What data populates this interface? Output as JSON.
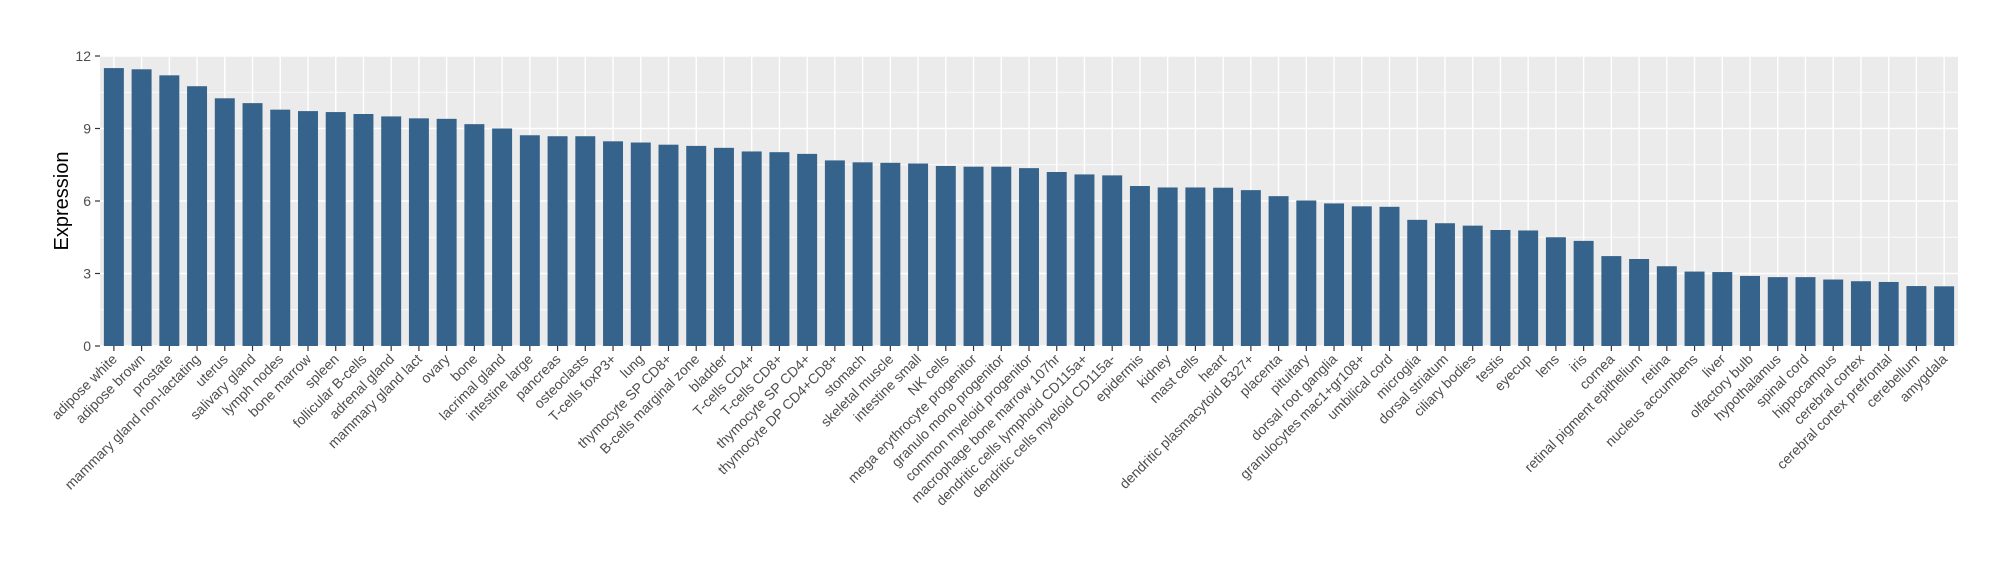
{
  "chart_data": {
    "type": "bar",
    "title": "",
    "xlabel": "",
    "ylabel": "Expression",
    "ylim": [
      0,
      12
    ],
    "yticks": [
      0,
      3,
      6,
      9,
      12
    ],
    "grid": true,
    "legend": "none",
    "bar_color": "#35638B",
    "panel_background": "#EBEBEB",
    "gridline_color": "#FFFFFF",
    "categories": [
      "adipose white",
      "adipose brown",
      "prostate",
      "mammary gland non-lactating",
      "uterus",
      "salivary gland",
      "lymph nodes",
      "bone marrow",
      "spleen",
      "follicular B-cells",
      "adrenal gland",
      "mammary gland  lact",
      "ovary",
      "bone",
      "lacrimal gland",
      "intestine large",
      "pancreas",
      "osteoclasts",
      "T-cells foxP3+",
      "lung",
      "thymocyte SP CD8+",
      "B-cells marginal zone",
      "bladder",
      "T-cells CD4+",
      "T-cells CD8+",
      "thymocyte SP CD4+",
      "thymocyte DP CD4+CD8+",
      "stomach",
      "skeletal muscle",
      "intestine small",
      "NK cells",
      "mega erythrocyte progenitor",
      "granulo mono progenitor",
      "common myeloid progenitor",
      "macrophage bone marrow 107hr",
      "dendritic cells lymphoid CD115a+",
      "dendritic cells myeloid CD115a-",
      "epidermis",
      "kidney",
      "mast cells",
      "heart",
      "dendritic plasmacytoid B327+",
      "placenta",
      "pituitary",
      "dorsal root ganglia",
      "granulocytes mac1+gr108+",
      "umbilical cord",
      "microglia",
      "dorsal striatum",
      "ciliary bodies",
      "testis",
      "eyecup",
      "lens",
      "iris",
      "cornea",
      "retinal pigment epithelium",
      "retina",
      "nucleus accumbens",
      "liver",
      "olfactory bulb",
      "hypothalamus",
      "spinal cord",
      "hippocampus",
      "cerebral cortex",
      "cerebral cortex prefrontal",
      "cerebellum",
      "amygdala"
    ],
    "values": [
      11.5,
      11.45,
      11.2,
      10.75,
      10.25,
      10.05,
      9.78,
      9.72,
      9.68,
      9.6,
      9.5,
      9.42,
      9.4,
      9.18,
      9.0,
      8.72,
      8.68,
      8.68,
      8.47,
      8.42,
      8.33,
      8.28,
      8.2,
      8.05,
      8.02,
      7.95,
      7.68,
      7.6,
      7.58,
      7.55,
      7.45,
      7.42,
      7.42,
      7.36,
      7.2,
      7.1,
      7.06,
      6.62,
      6.56,
      6.56,
      6.55,
      6.45,
      6.2,
      6.02,
      5.9,
      5.78,
      5.76,
      5.22,
      5.08,
      4.98,
      4.8,
      4.78,
      4.5,
      4.35,
      3.72,
      3.6,
      3.3,
      3.08,
      3.06,
      2.9,
      2.85,
      2.85,
      2.75,
      2.68,
      2.65,
      2.48,
      2.47
    ]
  }
}
